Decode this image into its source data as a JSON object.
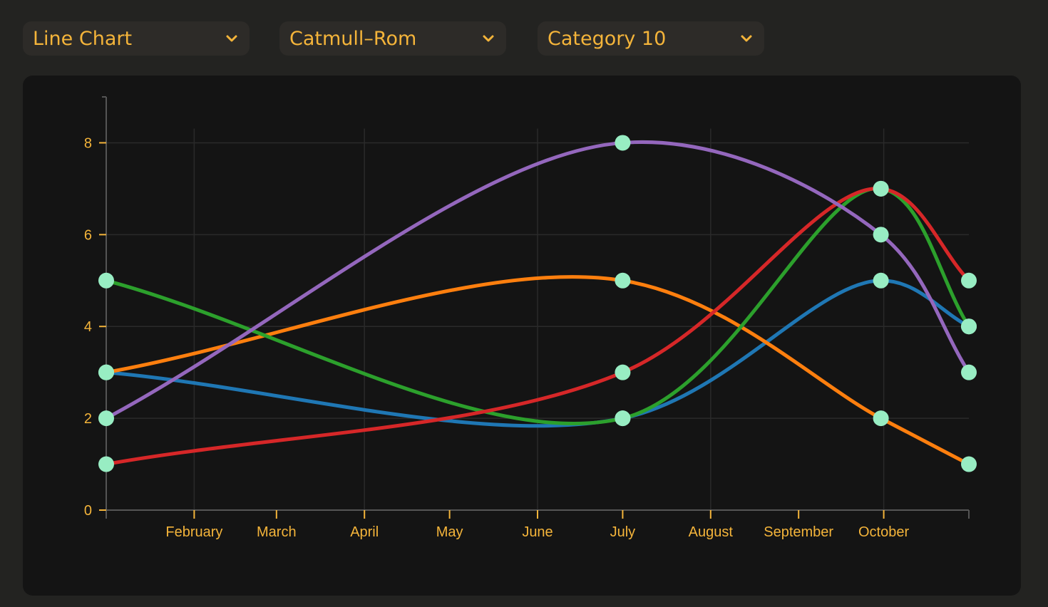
{
  "controls": {
    "chart_type": "Line Chart",
    "curve": "Catmull–Rom",
    "color_scheme": "Category 10"
  },
  "colors": {
    "accent": "#f4b43a",
    "point": "#98edc3",
    "panel": "#141414",
    "background": "#232321"
  },
  "icons": [
    "chevron-down-icon"
  ],
  "chart_data": {
    "type": "line",
    "curve": "catmull-rom",
    "x_ticks": [
      "February",
      "March",
      "April",
      "May",
      "June",
      "July",
      "August",
      "September",
      "October"
    ],
    "y_ticks": [
      0,
      2,
      4,
      6,
      8
    ],
    "ylim": [
      0,
      9
    ],
    "xlim": [
      "2024-01-01",
      "2024-10-31"
    ],
    "grid": true,
    "x": [
      "2024-01-01",
      "2024-07-01",
      "2024-09-30",
      "2024-10-31"
    ],
    "series": [
      {
        "color": "#1f77b4",
        "values": [
          3,
          2,
          5,
          4
        ]
      },
      {
        "color": "#ff7f0e",
        "values": [
          3,
          5,
          2,
          1
        ]
      },
      {
        "color": "#2ca02c",
        "values": [
          5,
          2,
          7,
          4
        ]
      },
      {
        "color": "#d62728",
        "values": [
          1,
          3,
          7,
          5
        ]
      },
      {
        "color": "#9467bd",
        "values": [
          2,
          8,
          6,
          3
        ]
      }
    ]
  }
}
